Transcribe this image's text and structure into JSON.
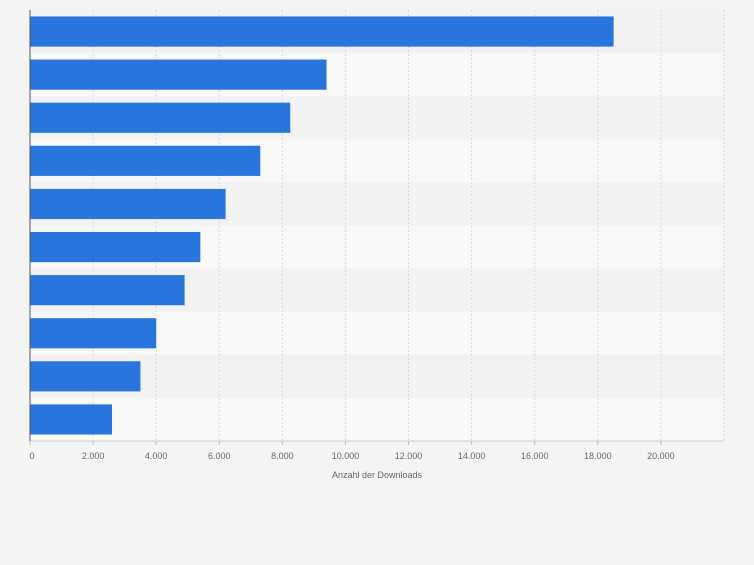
{
  "chart_data": {
    "type": "bar",
    "orientation": "horizontal",
    "categories": [
      "",
      "",
      "",
      "",
      "",
      "",
      "",
      "",
      "",
      ""
    ],
    "values": [
      18500,
      9400,
      8250,
      7300,
      6200,
      5400,
      4900,
      4000,
      3500,
      2600
    ],
    "xlabel": "Anzahl der Downloads",
    "ylabel": "",
    "xlim": [
      0,
      22000
    ],
    "x_ticks": [
      0,
      2000,
      4000,
      6000,
      8000,
      10000,
      12000,
      14000,
      16000,
      18000,
      20000
    ],
    "x_tick_labels": [
      "0",
      "2.000",
      "4.000",
      "6.000",
      "8.000",
      "10.000",
      "12.000",
      "14.000",
      "16.000",
      "18.000",
      "20.000"
    ],
    "grid": "vertical dashed",
    "legend": "none"
  },
  "colors": {
    "bar": "#2876dd",
    "page_background": "#f4f4f4",
    "band_light": "#f8f8f8",
    "band_dark": "#f2f2f2",
    "grid": "#d8d8d8",
    "axis": "#555555",
    "tick_text": "#666666"
  }
}
